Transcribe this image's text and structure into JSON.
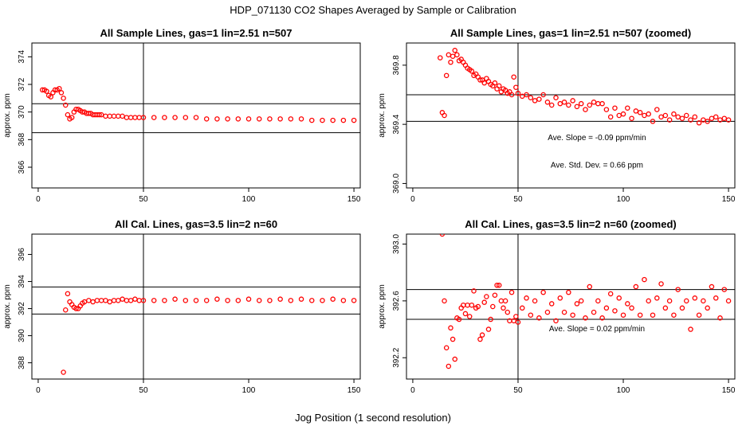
{
  "title": "HDP_071130  CO2 Shapes Averaged by Sample or Calibration",
  "xlabel": "Jog Position (1 second resolution)",
  "colors": {
    "points": "#ff0000",
    "axes": "#000000"
  },
  "chart_data": [
    {
      "type": "scatter",
      "title": "All Sample Lines, gas=1 lin=2.51 n=507",
      "ylabel": "approx. ppm",
      "xlim": [
        -3,
        153
      ],
      "ylim": [
        364.5,
        375
      ],
      "xticks": [
        0,
        50,
        100,
        150
      ],
      "yticks": [
        366,
        368,
        370,
        372,
        374
      ],
      "vline": 50,
      "hlines": [
        370.6,
        368.5
      ],
      "annotations": [],
      "series": [
        {
          "x": [
            2,
            3,
            4,
            5,
            6,
            7,
            8,
            9,
            10,
            11,
            12,
            13,
            14,
            15,
            16,
            17,
            18,
            19,
            20,
            21,
            22,
            23,
            24,
            25,
            26,
            27,
            28,
            29,
            30,
            32,
            34,
            36,
            38,
            40,
            42,
            44,
            46,
            48,
            50,
            55,
            60,
            65,
            70,
            75,
            80,
            85,
            90,
            95,
            100,
            105,
            110,
            115,
            120,
            125,
            130,
            135,
            140,
            145,
            150
          ],
          "y": [
            371.6,
            371.6,
            371.5,
            371.2,
            371.1,
            371.4,
            371.6,
            371.6,
            371.7,
            371.4,
            371.0,
            370.5,
            369.8,
            369.5,
            369.6,
            370.0,
            370.2,
            370.2,
            370.1,
            370.0,
            370.0,
            369.9,
            369.9,
            369.9,
            369.8,
            369.8,
            369.8,
            369.8,
            369.8,
            369.7,
            369.7,
            369.7,
            369.7,
            369.7,
            369.6,
            369.6,
            369.6,
            369.6,
            369.6,
            369.6,
            369.6,
            369.6,
            369.6,
            369.6,
            369.5,
            369.5,
            369.5,
            369.5,
            369.5,
            369.5,
            369.5,
            369.5,
            369.5,
            369.5,
            369.4,
            369.4,
            369.4,
            369.4,
            369.4
          ]
        }
      ]
    },
    {
      "type": "scatter",
      "title": "All Sample Lines, gas=1 lin=2.51 n=507 (zoomed)",
      "ylabel": "approx. ppm",
      "xlim": [
        -3,
        153
      ],
      "ylim": [
        368.97,
        369.95
      ],
      "xticks": [
        0,
        50,
        100,
        150
      ],
      "yticks": [
        369.0,
        369.4,
        369.8
      ],
      "vline": 50,
      "hlines": [
        369.6,
        369.42
      ],
      "annotations": [
        "Ave. Slope =  -0.09  ppm/min",
        "Ave. Std. Dev. =  0.66  ppm"
      ],
      "series": [
        {
          "x": [
            13,
            14,
            15,
            16,
            17,
            18,
            19,
            20,
            21,
            22,
            23,
            24,
            25,
            26,
            27,
            28,
            29,
            30,
            31,
            32,
            33,
            34,
            35,
            36,
            37,
            38,
            39,
            40,
            41,
            42,
            43,
            44,
            45,
            46,
            47,
            48,
            49,
            50,
            52,
            54,
            56,
            58,
            60,
            62,
            64,
            66,
            68,
            70,
            72,
            74,
            76,
            78,
            80,
            82,
            84,
            86,
            88,
            90,
            92,
            94,
            96,
            98,
            100,
            102,
            104,
            106,
            108,
            110,
            112,
            114,
            116,
            118,
            120,
            122,
            124,
            126,
            128,
            130,
            132,
            134,
            136,
            138,
            140,
            142,
            144,
            146,
            148,
            150
          ],
          "y": [
            369.85,
            369.48,
            369.46,
            369.73,
            369.87,
            369.82,
            369.86,
            369.9,
            369.87,
            369.83,
            369.84,
            369.82,
            369.8,
            369.78,
            369.77,
            369.76,
            369.73,
            369.74,
            369.72,
            369.7,
            369.7,
            369.68,
            369.71,
            369.69,
            369.67,
            369.66,
            369.68,
            369.64,
            369.66,
            369.62,
            369.64,
            369.63,
            369.61,
            369.62,
            369.6,
            369.72,
            369.65,
            369.61,
            369.59,
            369.6,
            369.58,
            369.56,
            369.57,
            369.6,
            369.55,
            369.53,
            369.58,
            369.54,
            369.55,
            369.53,
            369.56,
            369.52,
            369.54,
            369.5,
            369.53,
            369.55,
            369.54,
            369.54,
            369.5,
            369.45,
            369.51,
            369.46,
            369.47,
            369.51,
            369.44,
            369.49,
            369.48,
            369.46,
            369.47,
            369.42,
            369.5,
            369.45,
            369.46,
            369.43,
            369.47,
            369.45,
            369.44,
            369.46,
            369.43,
            369.45,
            369.41,
            369.43,
            369.42,
            369.44,
            369.45,
            369.43,
            369.44,
            369.43
          ]
        }
      ]
    },
    {
      "type": "scatter",
      "title": "All Cal. Lines, gas=3.5 lin=2 n=60",
      "ylabel": "approx. ppm",
      "xlim": [
        -3,
        153
      ],
      "ylim": [
        386.8,
        397.5
      ],
      "xticks": [
        0,
        50,
        100,
        150
      ],
      "yticks": [
        388,
        390,
        392,
        394,
        396
      ],
      "vline": 50,
      "hlines": [
        393.6,
        391.6
      ],
      "annotations": [],
      "series": [
        {
          "x": [
            12,
            13,
            14,
            15,
            16,
            17,
            18,
            19,
            20,
            21,
            22,
            24,
            26,
            28,
            30,
            32,
            34,
            36,
            38,
            40,
            42,
            44,
            46,
            48,
            50,
            55,
            60,
            65,
            70,
            75,
            80,
            85,
            90,
            95,
            100,
            105,
            110,
            115,
            120,
            125,
            130,
            135,
            140,
            145,
            150
          ],
          "y": [
            387.3,
            391.9,
            393.1,
            392.5,
            392.3,
            392.1,
            392.0,
            392.0,
            392.2,
            392.4,
            392.5,
            392.6,
            392.5,
            392.6,
            392.6,
            392.6,
            392.5,
            392.6,
            392.6,
            392.7,
            392.6,
            392.6,
            392.7,
            392.6,
            392.6,
            392.6,
            392.6,
            392.7,
            392.6,
            392.6,
            392.6,
            392.7,
            392.6,
            392.6,
            392.7,
            392.6,
            392.6,
            392.7,
            392.6,
            392.7,
            392.6,
            392.6,
            392.7,
            392.6,
            392.6
          ]
        }
      ]
    },
    {
      "type": "scatter",
      "title": "All Cal. Lines, gas=3.5 lin=2 n=60 (zoomed)",
      "ylabel": "approx. ppm",
      "xlim": [
        -3,
        153
      ],
      "ylim": [
        392.05,
        393.07
      ],
      "xticks": [
        0,
        50,
        100,
        150
      ],
      "yticks": [
        392.2,
        392.6,
        393.0
      ],
      "vline": 50,
      "hlines": [
        392.68,
        392.47
      ],
      "annotations": [
        "Ave. Slope =  0.02  ppm/min"
      ],
      "series": [
        {
          "x": [
            14,
            15,
            16,
            17,
            18,
            19,
            20,
            21,
            22,
            23,
            24,
            25,
            26,
            27,
            28,
            29,
            30,
            31,
            32,
            33,
            34,
            35,
            36,
            37,
            38,
            39,
            40,
            41,
            42,
            43,
            44,
            45,
            46,
            47,
            48,
            49,
            50,
            52,
            54,
            56,
            58,
            60,
            62,
            64,
            66,
            68,
            70,
            72,
            74,
            76,
            78,
            80,
            82,
            84,
            86,
            88,
            90,
            92,
            94,
            96,
            98,
            100,
            102,
            104,
            106,
            108,
            110,
            112,
            114,
            116,
            118,
            120,
            122,
            124,
            126,
            128,
            130,
            132,
            134,
            136,
            138,
            140,
            142,
            144,
            146,
            148,
            150
          ],
          "y": [
            393.07,
            392.6,
            392.27,
            392.14,
            392.41,
            392.33,
            392.19,
            392.48,
            392.47,
            392.55,
            392.57,
            392.51,
            392.57,
            392.49,
            392.57,
            392.67,
            392.55,
            392.56,
            392.33,
            392.36,
            392.59,
            392.63,
            392.4,
            392.47,
            392.56,
            392.64,
            392.71,
            392.71,
            392.6,
            392.55,
            392.6,
            392.52,
            392.46,
            392.66,
            392.46,
            392.49,
            392.45,
            392.55,
            392.62,
            392.5,
            392.6,
            392.48,
            392.66,
            392.52,
            392.58,
            392.46,
            392.62,
            392.52,
            392.66,
            392.5,
            392.58,
            392.6,
            392.48,
            392.7,
            392.52,
            392.6,
            392.48,
            392.55,
            392.65,
            392.53,
            392.62,
            392.5,
            392.58,
            392.55,
            392.7,
            392.5,
            392.75,
            392.6,
            392.5,
            392.62,
            392.72,
            392.55,
            392.6,
            392.5,
            392.68,
            392.55,
            392.6,
            392.4,
            392.62,
            392.5,
            392.6,
            392.55,
            392.7,
            392.62,
            392.48,
            392.68,
            392.6
          ]
        }
      ]
    }
  ]
}
